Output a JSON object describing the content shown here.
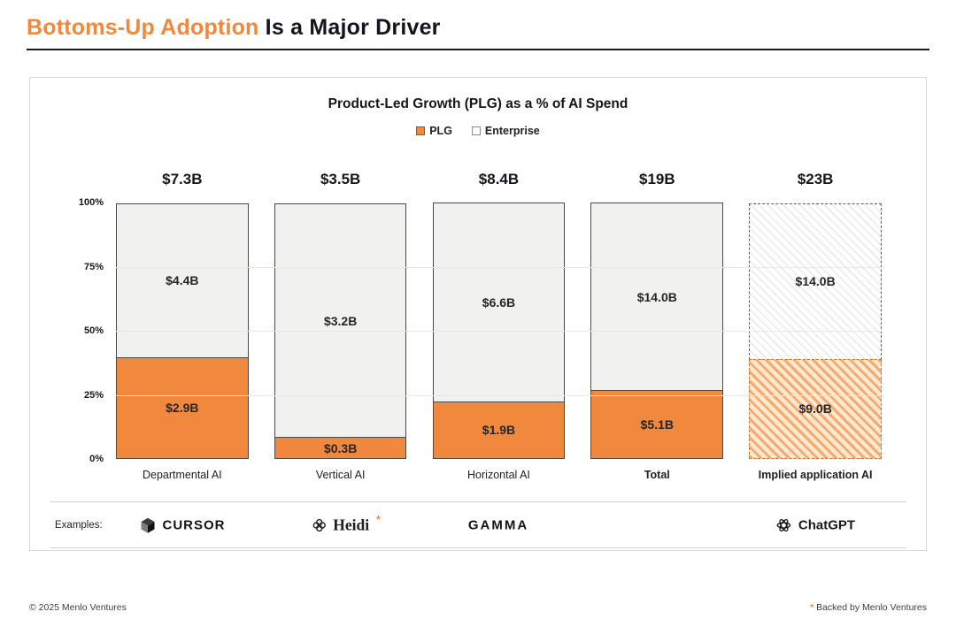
{
  "header": {
    "title_highlight": "Bottoms-Up Adoption",
    "title_rest": " Is a Major Driver"
  },
  "colors": {
    "accent_orange": "#F0883E",
    "plg_orange": "#F0893D",
    "enterprise_gray": "#F1F1EF",
    "segment_border": "#4A4A4A"
  },
  "chart_data": {
    "type": "bar",
    "variant": "stacked-100-percent",
    "title": "Product-Led Growth (PLG) as a % of AI Spend",
    "legend": [
      {
        "label": "PLG",
        "color": "#F0893D",
        "border": "#8A5A2B"
      },
      {
        "label": "Enterprise",
        "color": "#FAFAF8",
        "border": "#8C8C8C"
      }
    ],
    "ylim": [
      0,
      100
    ],
    "y_ticks": [
      {
        "label": "100%",
        "value": 100
      },
      {
        "label": "75%",
        "value": 75
      },
      {
        "label": "50%",
        "value": 50
      },
      {
        "label": "25%",
        "value": 25
      },
      {
        "label": "0%",
        "value": 0
      }
    ],
    "gridlines": [
      25,
      50,
      75
    ],
    "categories": [
      "Departmental AI",
      "Vertical AI",
      "Horizontal AI",
      "Total",
      "Implied application AI"
    ],
    "bars": [
      {
        "category": "Departmental AI",
        "bold": false,
        "hatched": false,
        "total_label": "$7.3B",
        "total_value": 7.3,
        "plg_label": "$2.9B",
        "plg_value": 2.9,
        "enterprise_label": "$4.4B",
        "enterprise_value": 4.4
      },
      {
        "category": "Vertical AI",
        "bold": false,
        "hatched": false,
        "total_label": "$3.5B",
        "total_value": 3.5,
        "plg_label": "$0.3B",
        "plg_value": 0.3,
        "enterprise_label": "$3.2B",
        "enterprise_value": 3.2
      },
      {
        "category": "Horizontal AI",
        "bold": false,
        "hatched": false,
        "total_label": "$8.4B",
        "total_value": 8.4,
        "plg_label": "$1.9B",
        "plg_value": 1.9,
        "enterprise_label": "$6.6B",
        "enterprise_value": 6.6
      },
      {
        "category": "Total",
        "bold": true,
        "hatched": false,
        "total_label": "$19B",
        "total_value": 19,
        "plg_label": "$5.1B",
        "plg_value": 5.1,
        "enterprise_label": "$14.0B",
        "enterprise_value": 14.0
      },
      {
        "category": "Implied application AI",
        "bold": true,
        "hatched": true,
        "total_label": "$23B",
        "total_value": 23,
        "plg_label": "$9.0B",
        "plg_value": 9.0,
        "enterprise_label": "$14.0B",
        "enterprise_value": 14.0
      }
    ]
  },
  "examples": {
    "label": "Examples:",
    "cursor": "CURSOR",
    "heidi": "Heidi",
    "heidi_asterisk": "*",
    "gamma": "GAMMA",
    "chatgpt": "ChatGPT"
  },
  "footer": {
    "copyright": "© 2025 Menlo Ventures",
    "note_asterisk": "*",
    "note_text": " Backed by Menlo Ventures"
  }
}
